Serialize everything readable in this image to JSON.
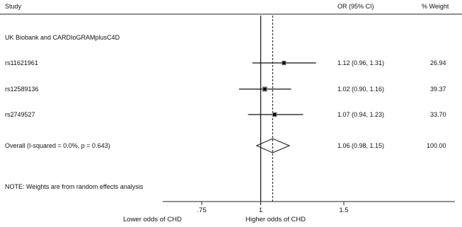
{
  "header": {
    "study": "Study",
    "or_ci": "OR (95% CI)",
    "weight": "% Weight"
  },
  "group_title": "UK Biobank and CARDIoGRAMplusC4D",
  "note": "NOTE: Weights are from random effects analysis",
  "chart_data": {
    "type": "forest",
    "x_scale": "log",
    "xlim": [
      0.62,
      1.95
    ],
    "xticks": [
      {
        "value": 0.75,
        "label": ".75"
      },
      {
        "value": 1,
        "label": "1"
      },
      {
        "value": 1.5,
        "label": "1.5"
      }
    ],
    "null_line": 1,
    "xlabel_left": "Lower odds of CHD",
    "xlabel_right": "Higher odds of CHD",
    "studies": [
      {
        "name": "rs11621961",
        "or": 1.12,
        "lo": 0.96,
        "hi": 1.31,
        "ci_text": "1.12 (0.96, 1.31)",
        "weight": 26.94,
        "weight_text": "26.94"
      },
      {
        "name": "rs12589136",
        "or": 1.02,
        "lo": 0.9,
        "hi": 1.16,
        "ci_text": "1.02 (0.90, 1.16)",
        "weight": 39.37,
        "weight_text": "39.37"
      },
      {
        "name": "rs2749527",
        "or": 1.07,
        "lo": 0.94,
        "hi": 1.23,
        "ci_text": "1.07 (0.94, 1.23)",
        "weight": 33.7,
        "weight_text": "33.70"
      }
    ],
    "overall": {
      "label": "Overall  (I-squared = 0.0%, p = 0.643)",
      "or": 1.06,
      "lo": 0.98,
      "hi": 1.15,
      "ci_text": "1.06 (0.98, 1.15)",
      "weight_text": "100.00"
    }
  }
}
